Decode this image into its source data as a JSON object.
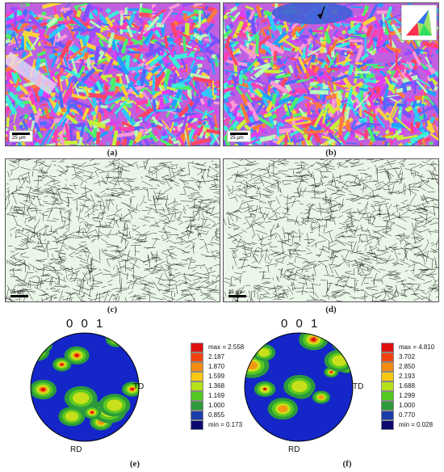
{
  "panels": {
    "a": {
      "caption": "(a)",
      "scale_bar": "25 μm"
    },
    "b": {
      "caption": "(b)",
      "scale_bar": "25 μm"
    },
    "c": {
      "caption": "(c)",
      "scale_bar": "25 μm"
    },
    "d": {
      "caption": "(d)",
      "scale_bar": "25 μm"
    },
    "e": {
      "caption": "(e)"
    },
    "f": {
      "caption": "(f)"
    }
  },
  "pole_figures": [
    {
      "title": "0 0 1",
      "td_label": "TD",
      "rd_label": "RD",
      "legend": [
        "max = 2.558",
        "2.187",
        "1.870",
        "1.599",
        "1.368",
        "1.169",
        "1.000",
        "0.855",
        "min = 0.173"
      ]
    },
    {
      "title": "0 0 1",
      "td_label": "TD",
      "rd_label": "RD",
      "legend": [
        "max = 4.810",
        "3.702",
        "2.850",
        "2.193",
        "1.688",
        "1.299",
        "1.000",
        "0.770",
        "min = 0.028"
      ]
    }
  ],
  "legend_colors": [
    "#e01010",
    "#f04410",
    "#f38a12",
    "#f6c814",
    "#b6e01a",
    "#52c820",
    "#2e9a3c",
    "#1a3ca8",
    "#0a0a70"
  ],
  "colors": {
    "background_blue": "#1426c8",
    "boundary_map_fill": "#eaf6e8"
  }
}
